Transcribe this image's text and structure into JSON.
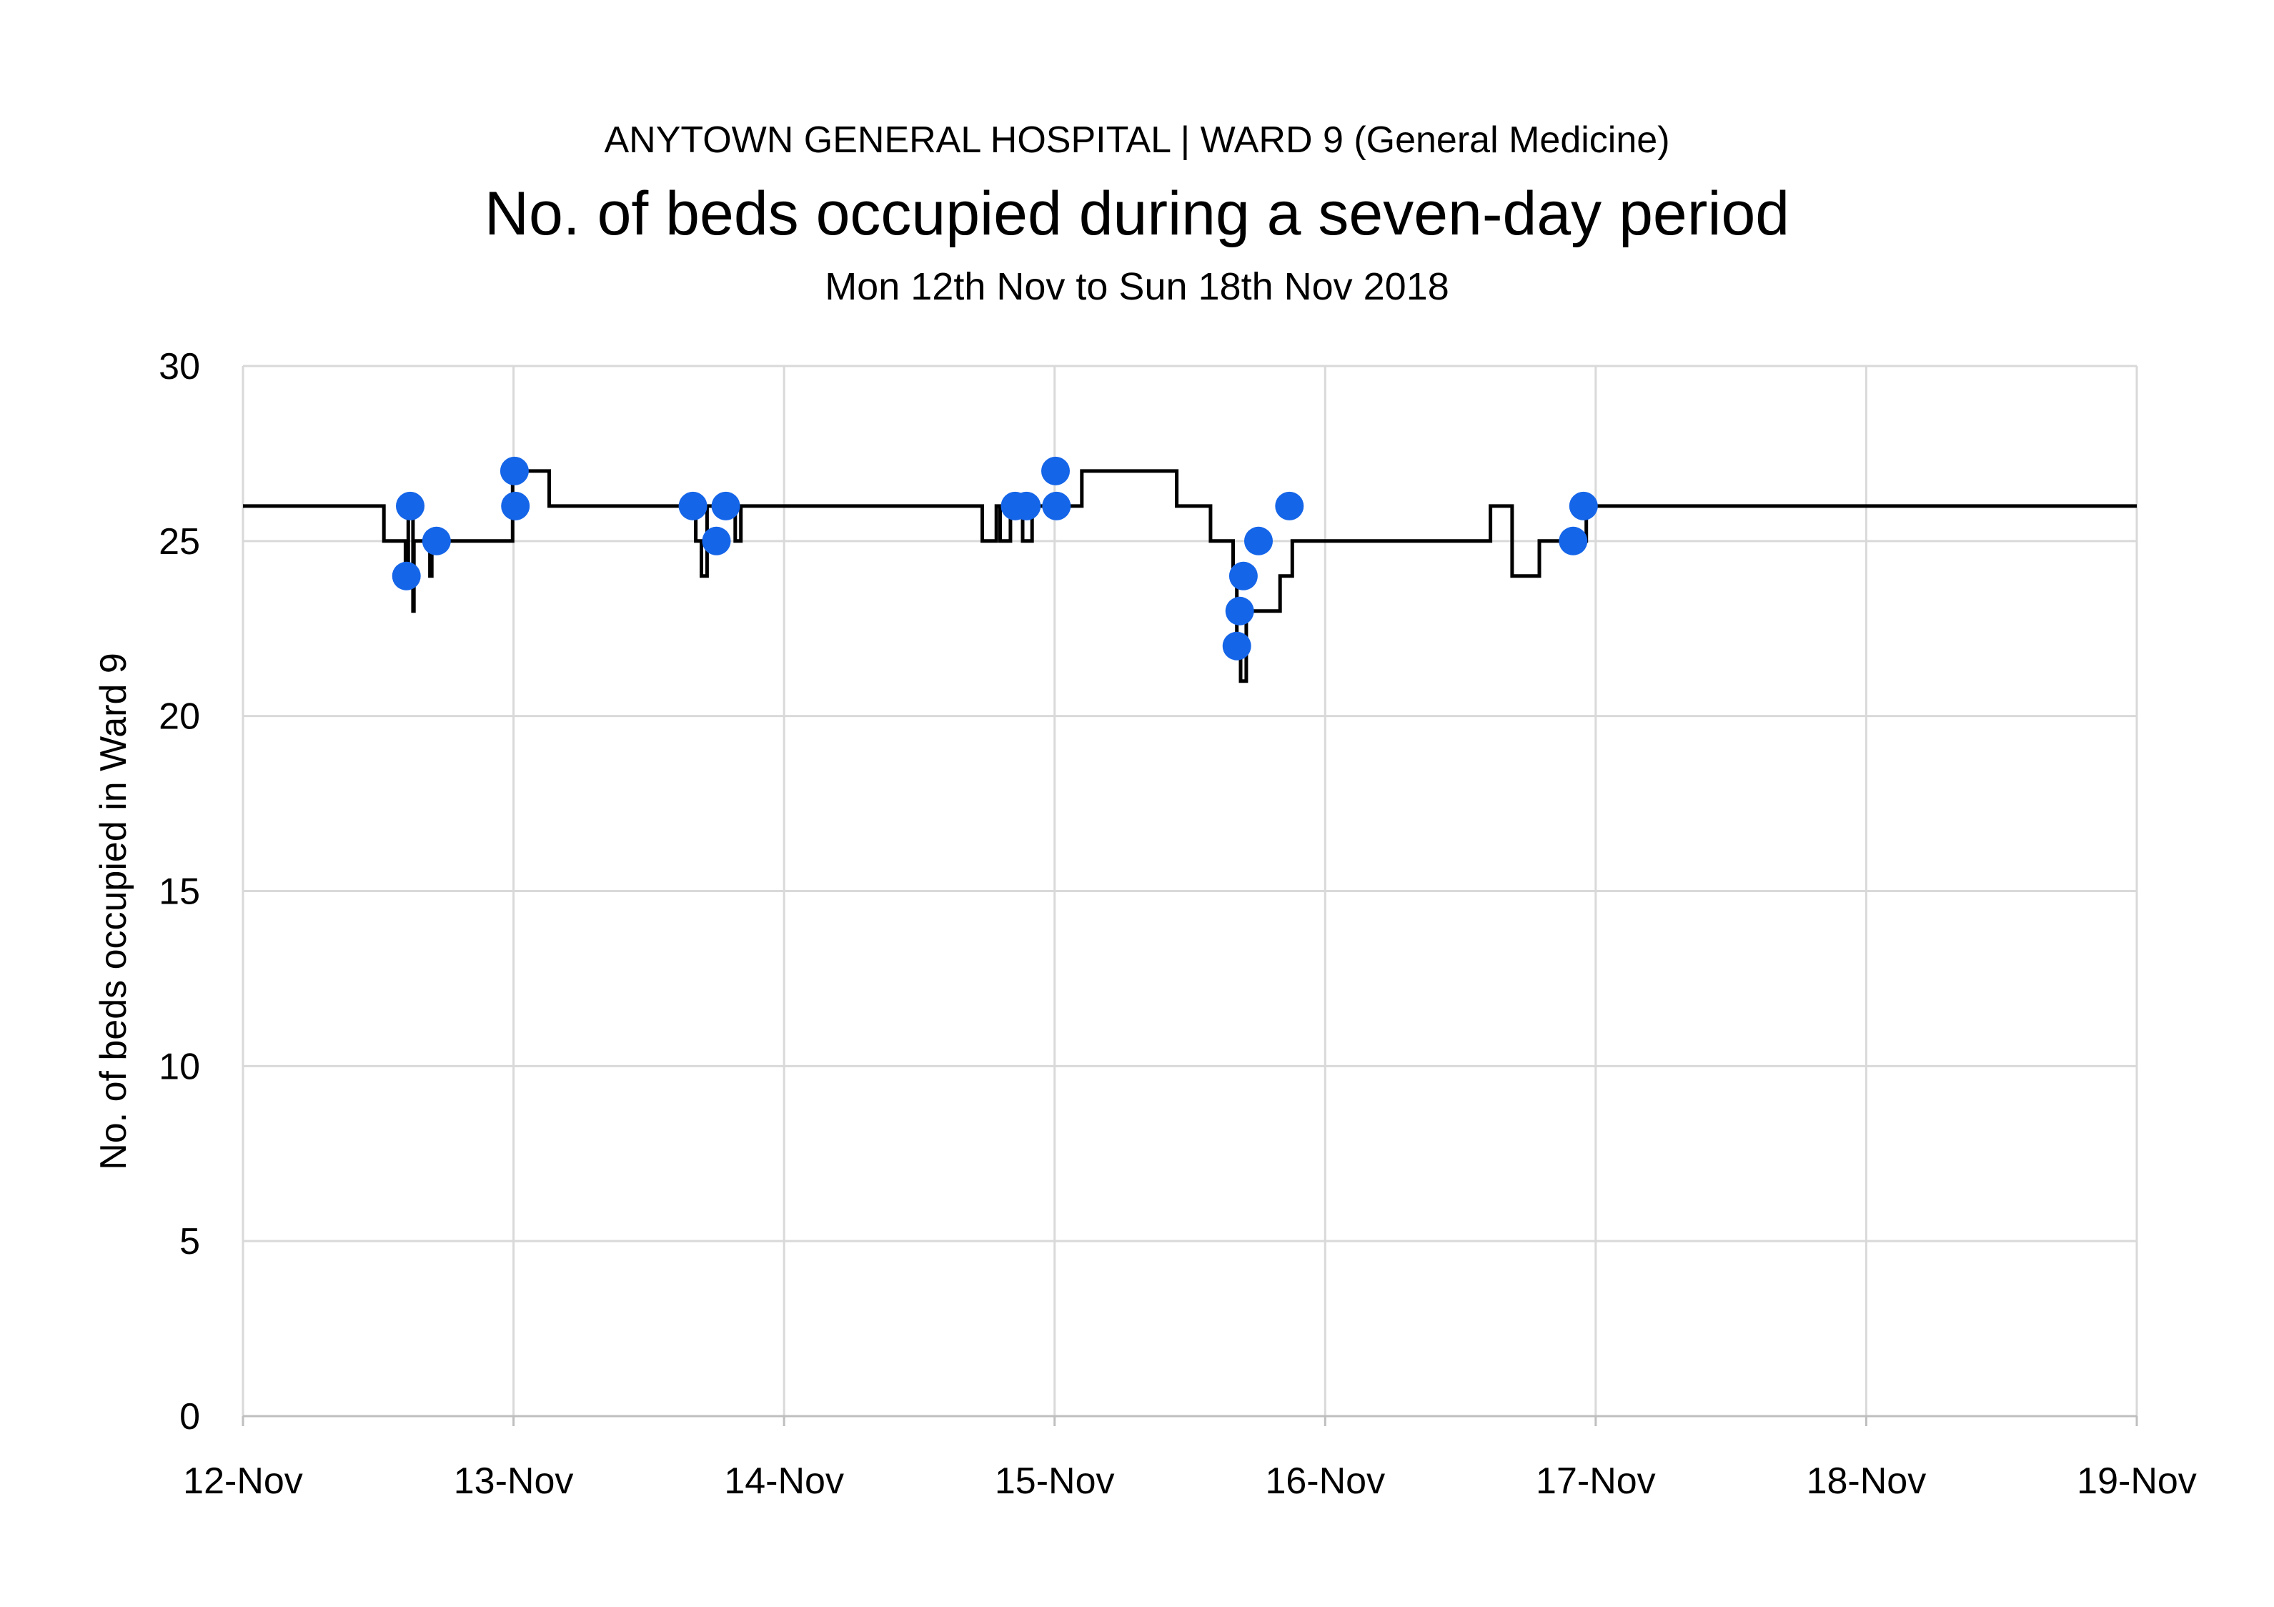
{
  "header": {
    "supertitle": "ANYTOWN GENERAL HOSPITAL | WARD 9 (General Medicine)",
    "title": "No. of beds occupied during a seven-day period",
    "subtitle": "Mon 12th Nov to Sun 18th Nov 2018"
  },
  "colors": {
    "line": "#000000",
    "marker": "#1565e8",
    "grid": "#d9d9d9",
    "axis": "#bfbfbf"
  },
  "chart_data": {
    "type": "line",
    "title": "No. of beds occupied during a seven-day period",
    "ylabel": "No. of beds occupied in Ward 9",
    "xlabel": "",
    "ylim": [
      0,
      30
    ],
    "xlim": [
      "2018-11-12",
      "2018-11-19"
    ],
    "grid": true,
    "legend": "none",
    "x_ticks": [
      "12-Nov",
      "13-Nov",
      "14-Nov",
      "15-Nov",
      "16-Nov",
      "17-Nov",
      "18-Nov",
      "19-Nov"
    ],
    "y_ticks": [
      0,
      5,
      10,
      15,
      20,
      25,
      30
    ],
    "series": [
      {
        "style": "step",
        "x": [
          "2018-11-12 00:00",
          "2018-11-12 12:30",
          "2018-11-12 14:25",
          "2018-11-12 14:40",
          "2018-11-12 15:05",
          "2018-11-12 15:10",
          "2018-11-12 16:35",
          "2018-11-12 16:45",
          "2018-11-12 23:55",
          "2018-11-13 03:10",
          "2018-11-13 16:10",
          "2018-11-13 16:40",
          "2018-11-13 17:10",
          "2018-11-13 19:40",
          "2018-11-13 20:10",
          "2018-11-14 17:35",
          "2018-11-14 18:50",
          "2018-11-14 19:10",
          "2018-11-14 20:05",
          "2018-11-14 21:10",
          "2018-11-14 22:00",
          "2018-11-14 23:55",
          "2018-11-15 02:25",
          "2018-11-15 10:50",
          "2018-11-15 13:50",
          "2018-11-15 15:50",
          "2018-11-15 16:10",
          "2018-11-15 16:30",
          "2018-11-15 17:00",
          "2018-11-15 20:00",
          "2018-11-15 21:05",
          "2018-11-16 14:40",
          "2018-11-16 16:35",
          "2018-11-16 19:00",
          "2018-11-16 23:10",
          "2018-11-19 00:00"
        ],
        "y": [
          26,
          25,
          24,
          26,
          23,
          25,
          24,
          25,
          27,
          26,
          25,
          24,
          26,
          25,
          26,
          25,
          26,
          25,
          26,
          25,
          26,
          26,
          27,
          26,
          25,
          24,
          22,
          21,
          23,
          24,
          25,
          26,
          24,
          25,
          26,
          26
        ]
      },
      {
        "style": "markers",
        "name": "",
        "x": [
          "2018-11-12 14:30",
          "2018-11-12 14:50",
          "2018-11-12 17:10",
          "2018-11-13 00:05",
          "2018-11-13 00:10",
          "2018-11-13 15:55",
          "2018-11-13 18:00",
          "2018-11-13 18:50",
          "2018-11-14 20:30",
          "2018-11-14 21:30",
          "2018-11-15 00:05",
          "2018-11-15 00:10",
          "2018-11-15 16:10",
          "2018-11-15 16:25",
          "2018-11-15 16:45",
          "2018-11-15 18:05",
          "2018-11-15 20:50",
          "2018-11-16 22:00",
          "2018-11-16 22:55"
        ],
        "y": [
          24,
          26,
          25,
          27,
          26,
          26,
          25,
          26,
          26,
          26,
          27,
          26,
          22,
          23,
          24,
          25,
          26,
          25,
          26
        ]
      }
    ]
  }
}
